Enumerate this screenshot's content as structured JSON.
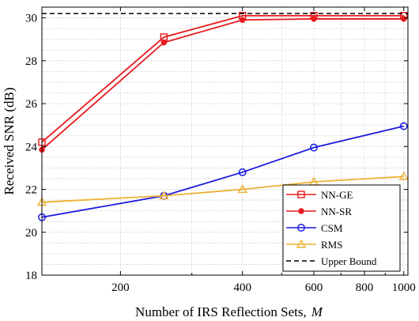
{
  "chart_data": {
    "type": "line",
    "xlabel": "Number of IRS Reflection Sets,",
    "xlabel_symbol": "M",
    "ylabel": "Received SNR (dB)",
    "xscale": "log",
    "xlim": [
      128,
      1024
    ],
    "ylim": [
      18,
      30.5
    ],
    "xticks": [
      200,
      400,
      600,
      800,
      1000
    ],
    "yticks": [
      18,
      20,
      22,
      24,
      26,
      28,
      30
    ],
    "grid": "on",
    "legend_position": "bottom-right",
    "series": [
      {
        "name": "NN-GE",
        "color": "#e8191c",
        "marker": "square",
        "x": [
          128,
          256,
          400,
          600,
          1000
        ],
        "y": [
          24.2,
          29.1,
          30.1,
          30.1,
          30.1
        ]
      },
      {
        "name": "NN-SR",
        "color": "#e8191c",
        "marker": "dot",
        "x": [
          128,
          256,
          400,
          600,
          1000
        ],
        "y": [
          23.85,
          28.85,
          29.9,
          29.95,
          29.95
        ]
      },
      {
        "name": "CSM",
        "color": "#1a1adf",
        "marker": "circle",
        "x": [
          128,
          256,
          400,
          600,
          1000
        ],
        "y": [
          20.7,
          21.7,
          22.8,
          23.95,
          24.95
        ]
      },
      {
        "name": "RMS",
        "color": "#eeb131",
        "marker": "triangle",
        "x": [
          128,
          256,
          400,
          600,
          1000
        ],
        "y": [
          21.4,
          21.7,
          22.0,
          22.35,
          22.6
        ]
      },
      {
        "name": "Upper Bound",
        "color": "#000000",
        "dash": true,
        "x": [
          128,
          1024
        ],
        "y": [
          30.2,
          30.2
        ]
      }
    ]
  }
}
